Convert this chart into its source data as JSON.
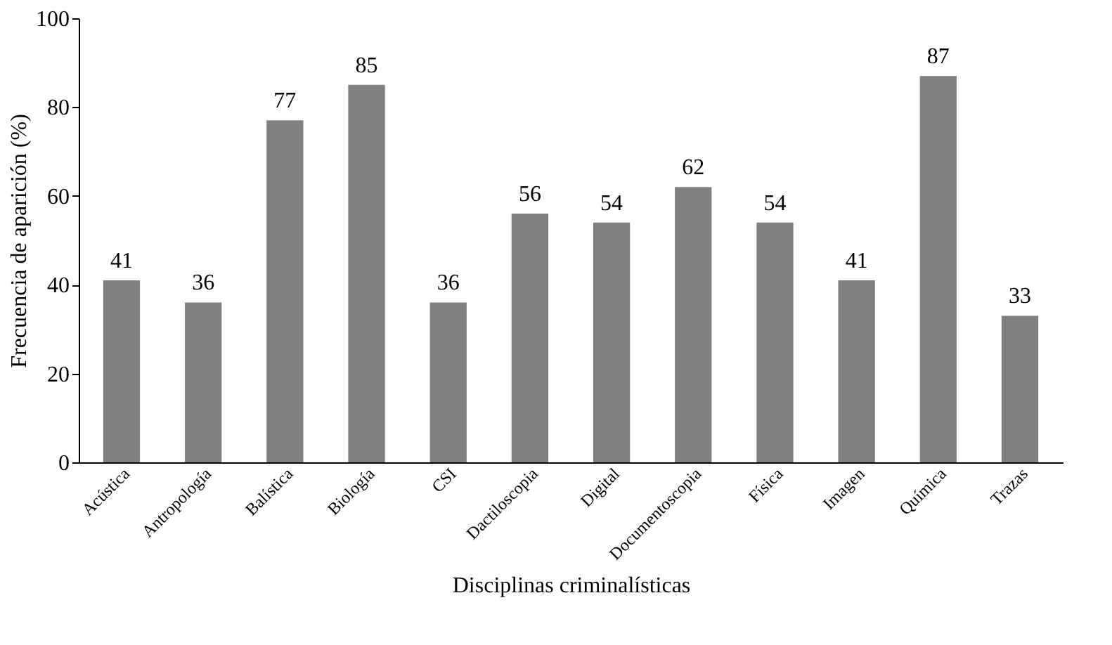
{
  "chart_data": {
    "type": "bar",
    "xlabel": "Disciplinas criminalísticas",
    "ylabel": "Frecuencia de aparición (%)",
    "categories": [
      "Acústica",
      "Antropología",
      "Balística",
      "Biología",
      "CSI",
      "Dactiloscopia",
      "Digital",
      "Documentoscopia",
      "Física",
      "Imagen",
      "Química",
      "Trazas"
    ],
    "values": [
      41,
      36,
      77,
      85,
      36,
      56,
      54,
      62,
      54,
      41,
      87,
      33
    ],
    "color": "#808080",
    "ylim": [
      0,
      100
    ],
    "yticks": [
      0,
      20,
      40,
      60,
      80,
      100
    ],
    "grid": false,
    "data_labels": true
  }
}
